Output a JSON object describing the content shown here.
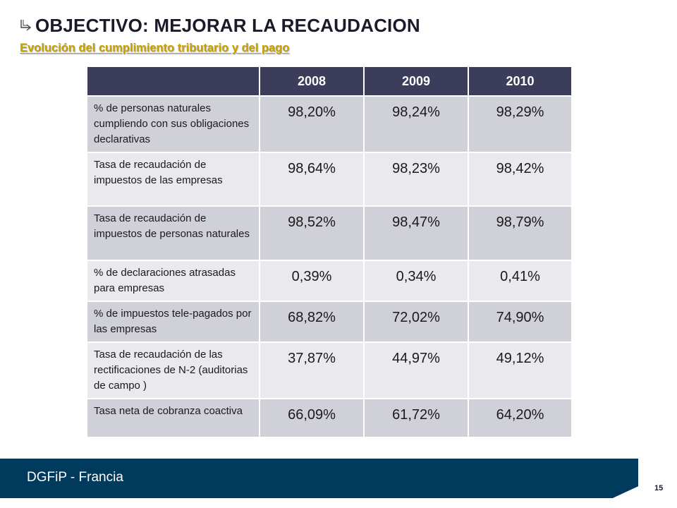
{
  "title": "OBJECTIVO: MEJORAR LA RECAUDACION",
  "subtitle": "Evolución del cumplimiento tributario y del pago",
  "table": {
    "columns": [
      "2008",
      "2009",
      "2010"
    ],
    "rows": [
      {
        "label": "% de personas naturales cumpliendo con sus obligaciones declarativas",
        "values": [
          "98,20%",
          "98,24%",
          "98,29%"
        ]
      },
      {
        "label": "Tasa  de recaudación de impuestos de las empresas",
        "values": [
          "98,64%",
          "98,23%",
          "98,42%"
        ]
      },
      {
        "label": "Tasa de recaudación de impuestos de personas naturales",
        "values": [
          "98,52%",
          "98,47%",
          "98,79%"
        ]
      },
      {
        "label": "% de declaraciones atrasadas para empresas",
        "values": [
          "0,39%",
          "0,34%",
          "0,41%"
        ]
      },
      {
        "label": "% de impuestos tele-pagados por las empresas",
        "values": [
          "68,82%",
          "72,02%",
          "74,90%"
        ]
      },
      {
        "label": "Tasa de recaudación de las rectificaciones de N-2 (auditorias de campo )",
        "values": [
          "37,87%",
          "44,97%",
          "49,12%"
        ]
      },
      {
        "label": "Tasa neta de cobranza coactiva",
        "values": [
          "66,09%",
          "61,72%",
          "64,20%"
        ]
      }
    ]
  },
  "footer": {
    "text": "DGFiP - Francia"
  },
  "page_number": "15",
  "colors": {
    "header": "#3c3d5a",
    "footer": "#003a5c",
    "subtitle": "#c8a200"
  }
}
